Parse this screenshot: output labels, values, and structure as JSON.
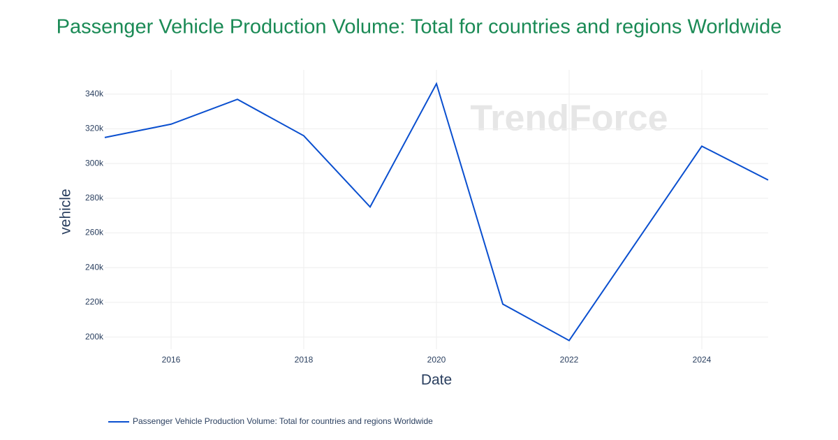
{
  "chart_data": {
    "type": "line",
    "title": "Passenger Vehicle Production Volume: Total for countries and regions Worldwide",
    "x_label": "Date",
    "y_label": "vehicle",
    "watermark": "TrendForce",
    "x": [
      2015,
      2016,
      2017,
      2018,
      2019,
      2020,
      2021,
      2022,
      2023,
      2024,
      2025
    ],
    "series": [
      {
        "name": "Passenger Vehicle Production Volume: Total for countries and regions Worldwide",
        "color": "#0a4fcf",
        "values": [
          315000,
          322700,
          337000,
          316000,
          275000,
          346000,
          219000,
          198000,
          254000,
          310000,
          290500
        ]
      }
    ],
    "xlim": [
      2015,
      2025
    ],
    "xticks": [
      2016,
      2018,
      2020,
      2022,
      2024
    ],
    "ylim": [
      193000,
      354000
    ],
    "yticks": [
      {
        "value": 200000,
        "label": "200k"
      },
      {
        "value": 220000,
        "label": "220k"
      },
      {
        "value": 240000,
        "label": "240k"
      },
      {
        "value": 260000,
        "label": "260k"
      },
      {
        "value": 280000,
        "label": "280k"
      },
      {
        "value": 300000,
        "label": "300k"
      },
      {
        "value": 320000,
        "label": "320k"
      },
      {
        "value": 340000,
        "label": "340k"
      }
    ],
    "grid": true,
    "legend": "bottom-left"
  }
}
